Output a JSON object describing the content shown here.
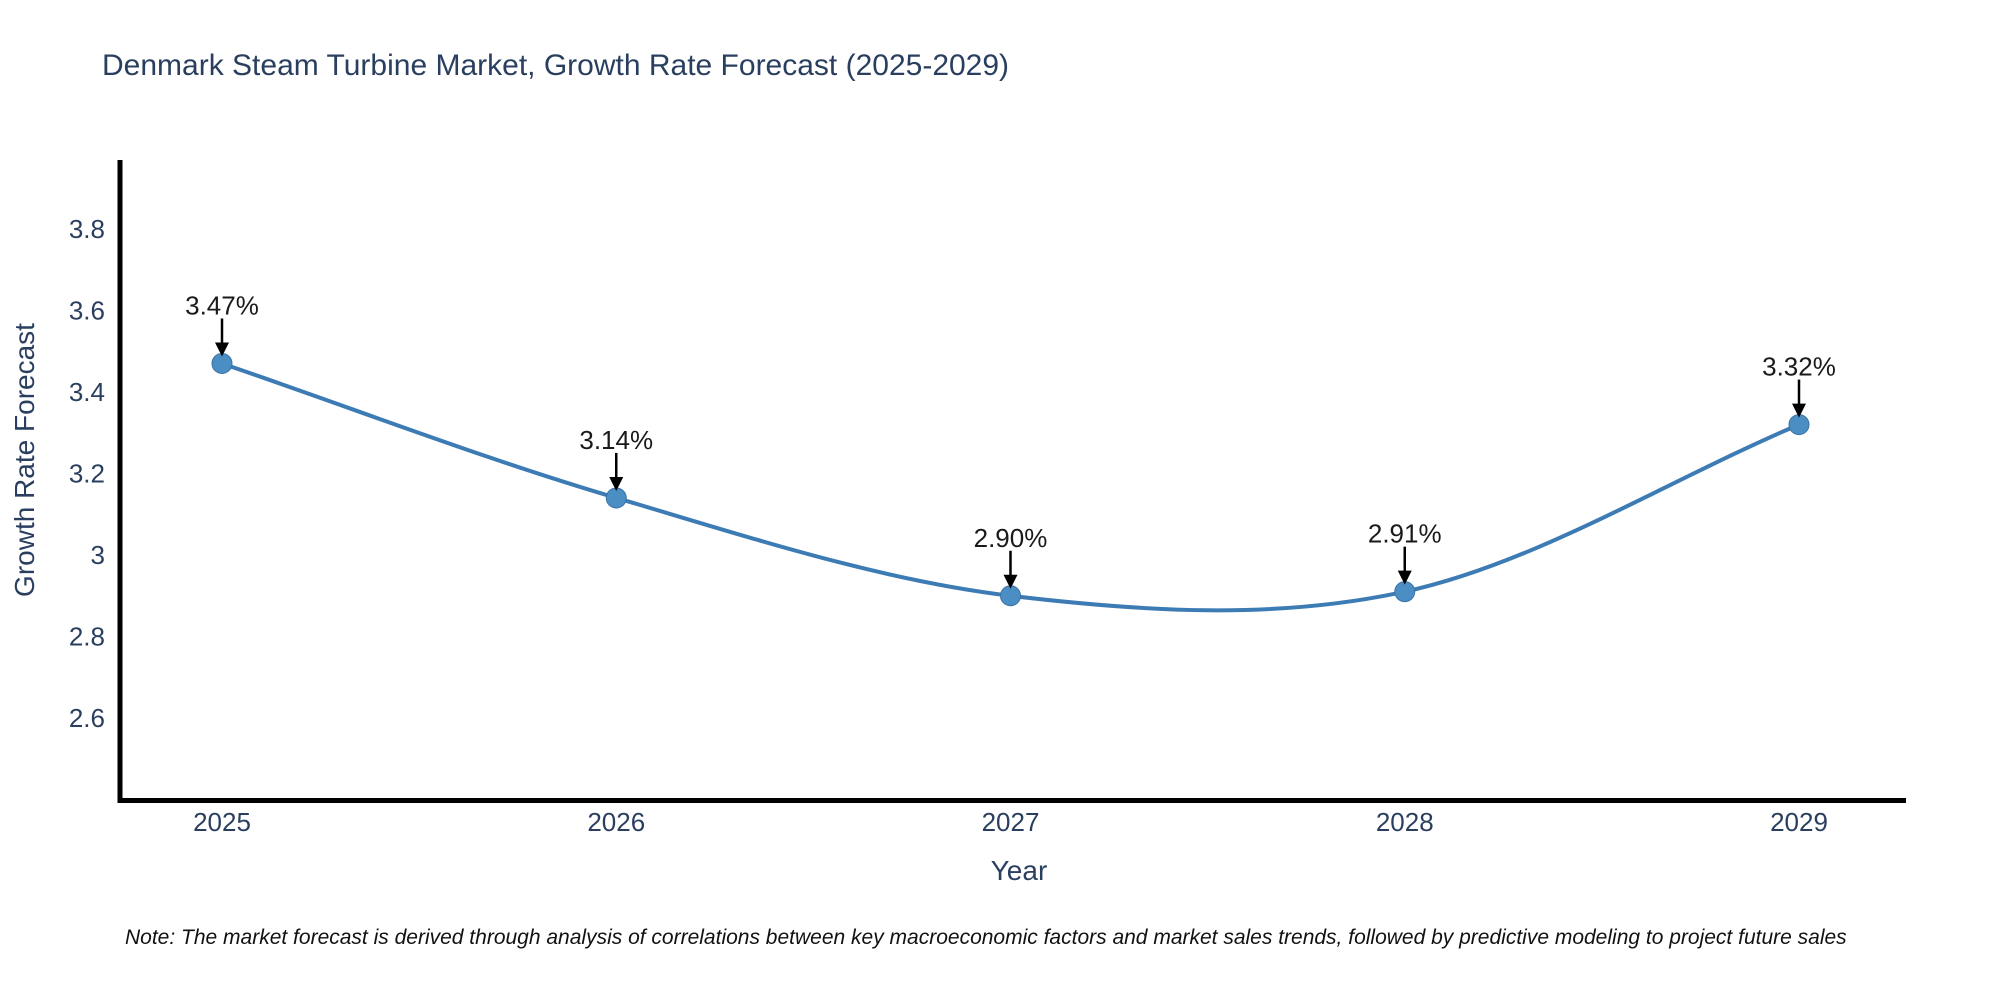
{
  "note": "Note: The market forecast is derived through analysis of correlations between key macroeconomic factors and market sales trends, followed by predictive modeling to project future sales",
  "chart_data": {
    "type": "line",
    "title": "Denmark Steam Turbine Market, Growth Rate Forecast (2025-2029)",
    "xlabel": "Year",
    "ylabel": "Growth Rate Forecast",
    "x": [
      2025,
      2026,
      2027,
      2028,
      2029
    ],
    "x_tick_labels": [
      "2025",
      "2026",
      "2027",
      "2028",
      "2029"
    ],
    "series": [
      {
        "name": "Growth Rate Forecast",
        "values": [
          3.47,
          3.14,
          2.9,
          2.91,
          3.32
        ]
      }
    ],
    "point_labels": [
      "3.47%",
      "3.14%",
      "2.90%",
      "2.91%",
      "3.32%"
    ],
    "yticks": [
      3.8,
      3.6,
      3.4,
      3.2,
      3,
      2.8,
      2.6
    ],
    "ytick_labels": [
      "3.8",
      "3.6",
      "3.4",
      "3.2",
      "3",
      "2.8",
      "2.6"
    ],
    "ylim": [
      2.4,
      3.97
    ],
    "xlim": [
      2024.74,
      2029.27
    ],
    "line_shape": "spline",
    "grid": false,
    "legend_position": "none",
    "colors": {
      "line": "#3d7bb4",
      "marker_fill": "#4a8ec4",
      "marker_edge": "#3a72a8",
      "annotation_text": "#1a1a1a",
      "arrow": "#000000",
      "axis_line": "#000000",
      "tick_text": "#2a3f5f",
      "axis_title": "#2a3f5f",
      "title": "#2a3f5f",
      "background": "#ffffff",
      "note_text": "#111111"
    }
  }
}
